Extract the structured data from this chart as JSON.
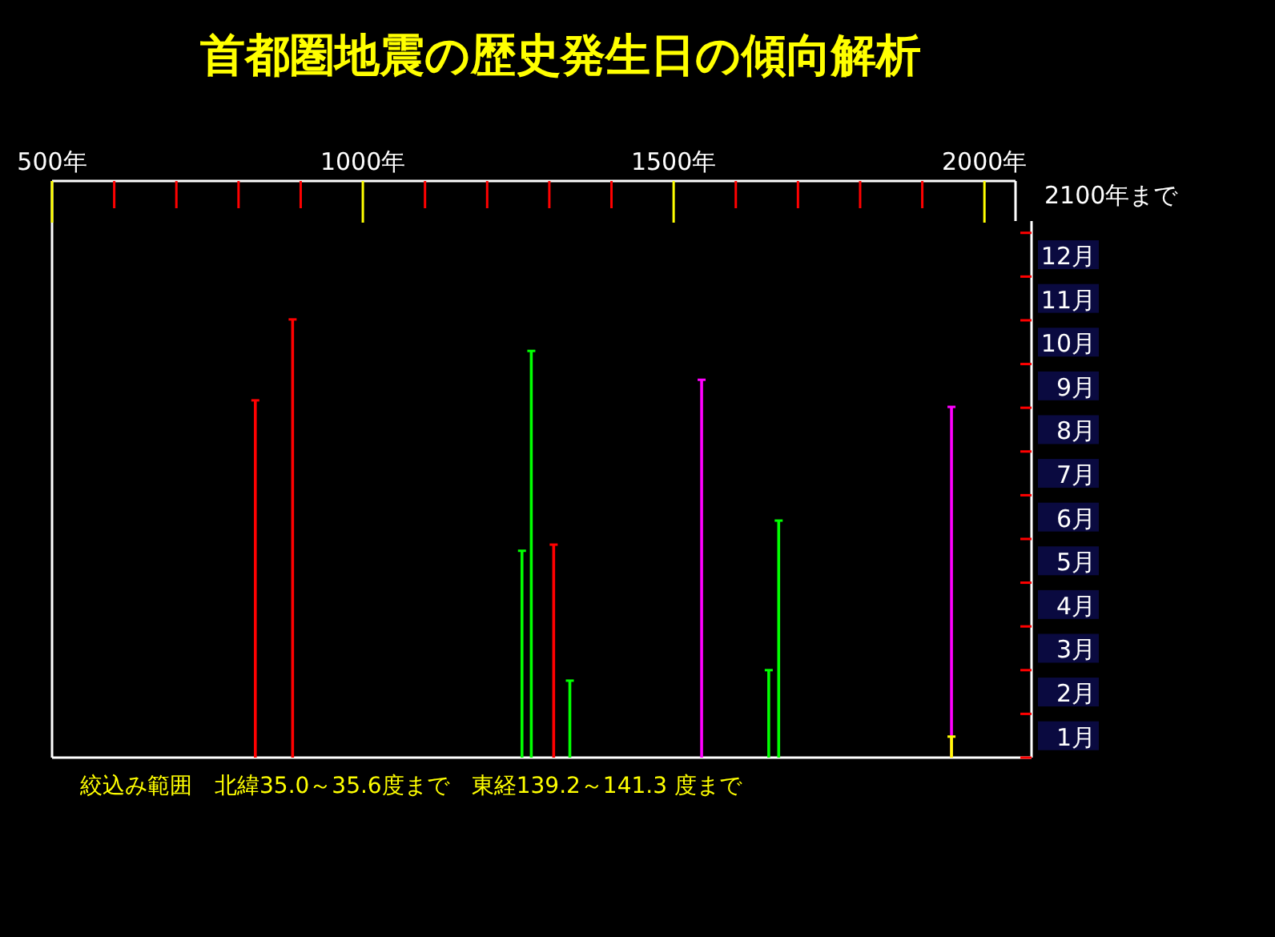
{
  "chart_data": {
    "type": "lollipop",
    "title": "首都圏地震の歴史発生日の傾向解析",
    "series": [
      {
        "color": "#ff0000",
        "x": [
          827,
          887,
          1307
        ],
        "values": [
          9.17,
          11.02,
          5.87
        ]
      },
      {
        "color": "#00ff00",
        "x": [
          1256,
          1271,
          1333,
          1653,
          1669
        ],
        "values": [
          5.73,
          10.3,
          2.76,
          3.0,
          6.42
        ]
      },
      {
        "color": "#ff00ff",
        "x": [
          1545,
          1947
        ],
        "values": [
          9.64,
          9.02
        ]
      },
      {
        "color": "#ffff00",
        "x": [
          1947
        ],
        "values": [
          1.48
        ]
      }
    ],
    "xlim": [
      500,
      2050
    ],
    "xticks": [
      {
        "value": 500,
        "label": "500年"
      },
      {
        "value": 1000,
        "label": "1000年"
      },
      {
        "value": 1500,
        "label": "1500年"
      },
      {
        "value": 2000,
        "label": "2000年"
      }
    ],
    "ylim": [
      1,
      13.27
    ],
    "yticks": [
      {
        "value": 1,
        "label": "1月"
      },
      {
        "value": 2,
        "label": "2月"
      },
      {
        "value": 3,
        "label": "3月"
      },
      {
        "value": 4,
        "label": "4月"
      },
      {
        "value": 5,
        "label": "5月"
      },
      {
        "value": 6,
        "label": "6月"
      },
      {
        "value": 7,
        "label": "7月"
      },
      {
        "value": 8,
        "label": "8月"
      },
      {
        "value": 9,
        "label": "9月"
      },
      {
        "value": 10,
        "label": "10月"
      },
      {
        "value": 11,
        "label": "11月"
      },
      {
        "value": 12,
        "label": "12月"
      }
    ],
    "annotations": [
      "2100年まで",
      "絞込み範囲　北緯35.0～35.6度まで　東経139.2～141.3 度まで"
    ]
  }
}
